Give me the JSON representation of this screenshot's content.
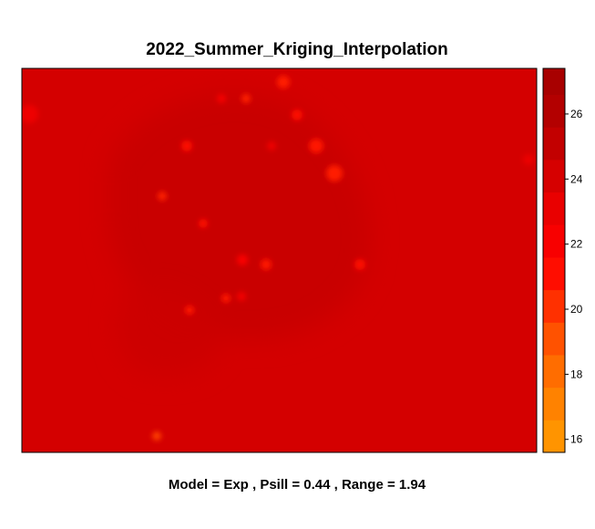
{
  "chart_data": {
    "type": "heatmap",
    "title": "2022_Summer_Kriging_Interpolation",
    "subtitle": "Model = Exp , Psill = 0.44 , Range = 1.94",
    "background_color": "#d40000",
    "grid": false,
    "colorbar": {
      "position": "right",
      "range": [
        15.6,
        27.4
      ],
      "ticks": [
        16,
        18,
        20,
        22,
        24,
        26
      ],
      "bins": [
        {
          "from": 15.6,
          "to": 16.6,
          "color": "#ff9400"
        },
        {
          "from": 16.6,
          "to": 17.6,
          "color": "#ff8200"
        },
        {
          "from": 17.6,
          "to": 18.6,
          "color": "#ff6d00"
        },
        {
          "from": 18.6,
          "to": 19.6,
          "color": "#ff5200"
        },
        {
          "from": 19.6,
          "to": 20.6,
          "color": "#ff3000"
        },
        {
          "from": 20.6,
          "to": 21.6,
          "color": "#ff0d00"
        },
        {
          "from": 21.6,
          "to": 22.6,
          "color": "#f80000"
        },
        {
          "from": 22.6,
          "to": 23.6,
          "color": "#e90000"
        },
        {
          "from": 23.6,
          "to": 24.6,
          "color": "#d60000"
        },
        {
          "from": 24.6,
          "to": 25.6,
          "color": "#c20000"
        },
        {
          "from": 25.6,
          "to": 26.6,
          "color": "#b30000"
        },
        {
          "from": 26.6,
          "to": 27.4,
          "color": "#a80000"
        }
      ]
    },
    "field": {
      "base_value": 23.9,
      "regions": [
        {
          "name": "central-dark-region",
          "value": 24.2,
          "color": "#c80000"
        },
        {
          "name": "southwest-dark-region",
          "value": 24.1,
          "color": "#cc0000"
        }
      ],
      "hotspots": [
        {
          "value": 21.5,
          "color": "#ff1a00"
        },
        {
          "value": 21.8,
          "color": "#ff0a00"
        },
        {
          "value": 21.2,
          "color": "#ff2200"
        },
        {
          "value": 22.0,
          "color": "#f60000"
        },
        {
          "value": 21.6,
          "color": "#ff1200"
        },
        {
          "value": 21.4,
          "color": "#ff1c00"
        },
        {
          "value": 22.2,
          "color": "#f00000"
        },
        {
          "value": 21.7,
          "color": "#ff0e00"
        },
        {
          "value": 21.3,
          "color": "#ff2000"
        },
        {
          "value": 21.8,
          "color": "#ff0c00"
        },
        {
          "value": 21.9,
          "color": "#fa0000"
        },
        {
          "value": 21.5,
          "color": "#ff1600"
        },
        {
          "value": 21.6,
          "color": "#ff1400"
        },
        {
          "value": 22.1,
          "color": "#f40000"
        },
        {
          "value": 21.4,
          "color": "#ff1800"
        },
        {
          "value": 21.7,
          "color": "#ff1000"
        },
        {
          "value": 22.3,
          "color": "#ee0000"
        },
        {
          "value": 22.4,
          "color": "#ec0000"
        },
        {
          "value": 20.2,
          "color": "#ff4000"
        }
      ]
    }
  }
}
